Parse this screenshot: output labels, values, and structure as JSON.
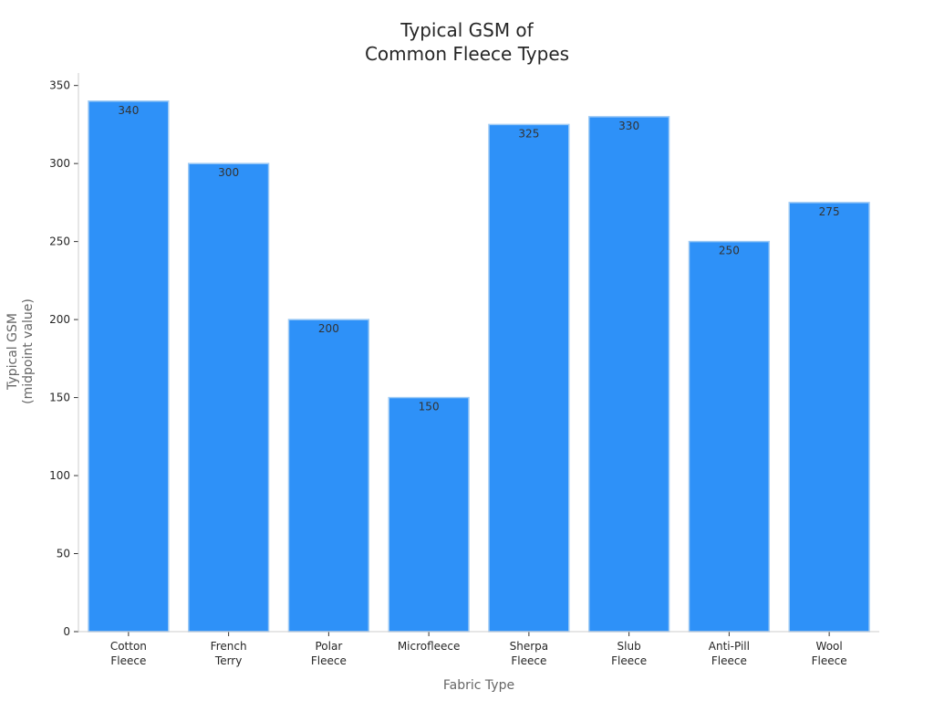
{
  "chart_data": {
    "type": "bar",
    "title": [
      "Typical GSM of",
      "Common Fleece Types"
    ],
    "xlabel": "Fabric Type",
    "ylabel": [
      "Typical GSM",
      "(midpoint value)"
    ],
    "categories": [
      [
        "Cotton",
        "Fleece"
      ],
      [
        "French",
        "Terry"
      ],
      [
        "Polar",
        "Fleece"
      ],
      [
        "Microfleece"
      ],
      [
        "Sherpa",
        "Fleece"
      ],
      [
        "Slub",
        "Fleece"
      ],
      [
        "Anti-Pill",
        "Fleece"
      ],
      [
        "Wool",
        "Fleece"
      ]
    ],
    "values": [
      340,
      300,
      200,
      150,
      325,
      330,
      250,
      275
    ],
    "data_labels": [
      "340",
      "300",
      "200",
      "150",
      "325",
      "330",
      "250",
      "275"
    ],
    "ylim": [
      0,
      358
    ],
    "yticks": [
      0,
      50,
      100,
      150,
      200,
      250,
      300,
      350
    ],
    "ytick_labels": [
      "0",
      "50",
      "100",
      "150",
      "200",
      "250",
      "300",
      "350"
    ],
    "grid": false,
    "legend": "none",
    "colors": {
      "bar": "#2e91f8",
      "bar_edge": "#9fcbf5",
      "axis": "#cccccc",
      "text": "#262626"
    }
  }
}
